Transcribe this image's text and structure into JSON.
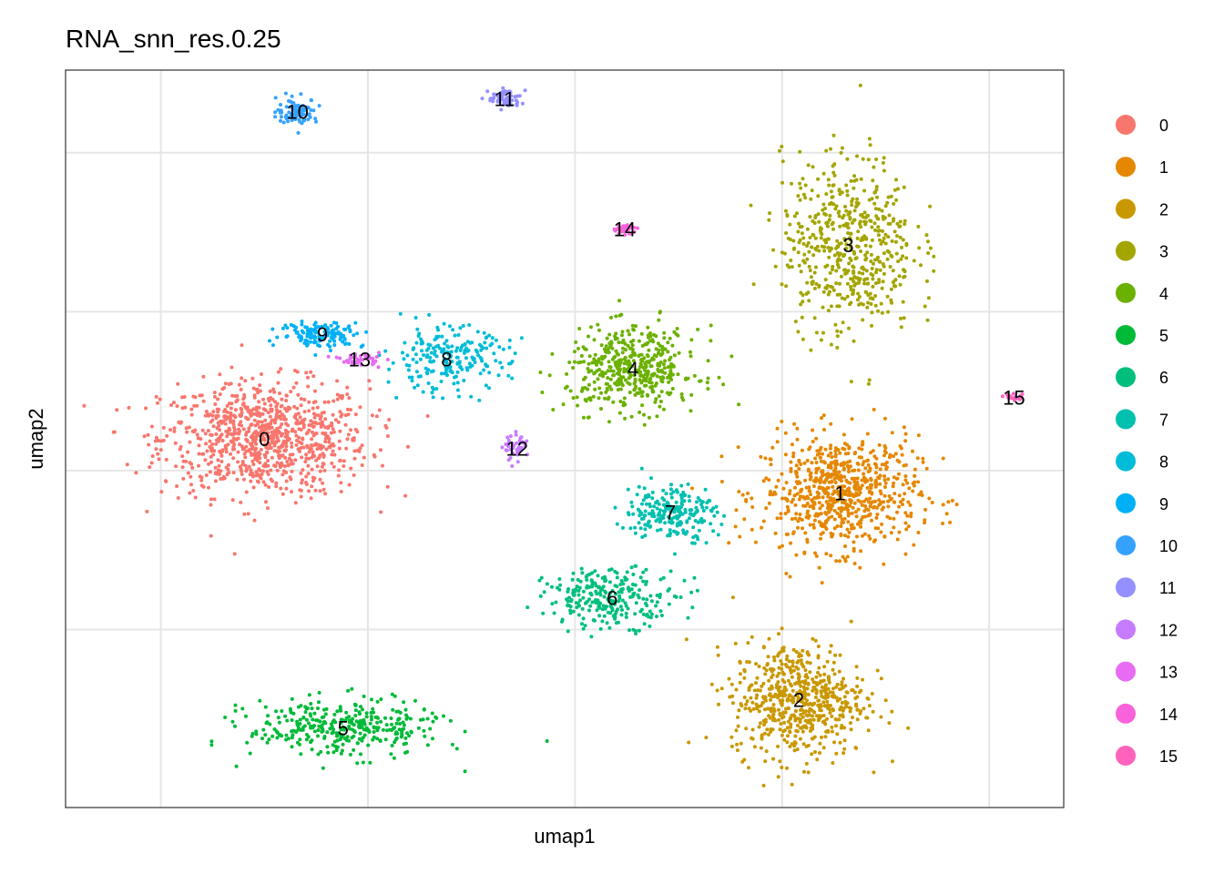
{
  "chart_data": {
    "type": "scatter",
    "title": "RNA_snn_res.0.25",
    "xlabel": "umap1",
    "ylabel": "umap2",
    "x_ticks_shown": false,
    "y_ticks_shown": false,
    "grid": true,
    "legend_position": "right",
    "xlim": [
      -4.3,
      19.8
    ],
    "ylim": [
      -10.6,
      12.6
    ],
    "clusters": [
      {
        "name": "0",
        "color": "#F8766D",
        "label_pos": [
          0.5,
          1.0
        ],
        "spread": [
          2.5,
          1.8
        ],
        "points": 900
      },
      {
        "name": "1",
        "color": "#E58700",
        "label_pos": [
          14.4,
          -0.7
        ],
        "spread": [
          1.9,
          1.8
        ],
        "points": 700
      },
      {
        "name": "2",
        "color": "#C99800",
        "label_pos": [
          13.4,
          -7.2
        ],
        "spread": [
          1.6,
          1.8
        ],
        "points": 600
      },
      {
        "name": "3",
        "color": "#A3A500",
        "label_pos": [
          14.6,
          7.1
        ],
        "spread": [
          1.6,
          2.8
        ],
        "points": 550
      },
      {
        "name": "4",
        "color": "#6BB100",
        "label_pos": [
          9.4,
          3.2
        ],
        "spread": [
          1.6,
          1.3
        ],
        "points": 450
      },
      {
        "name": "5",
        "color": "#00BA38",
        "label_pos": [
          2.4,
          -8.1
        ],
        "spread": [
          2.3,
          0.9
        ],
        "points": 350
      },
      {
        "name": "6",
        "color": "#00BF7D",
        "label_pos": [
          8.9,
          -4.0
        ],
        "spread": [
          1.6,
          0.9
        ],
        "points": 260
      },
      {
        "name": "7",
        "color": "#00C0AF",
        "label_pos": [
          10.3,
          -1.3
        ],
        "spread": [
          1.1,
          0.9
        ],
        "points": 220
      },
      {
        "name": "8",
        "color": "#00BCD8",
        "label_pos": [
          4.9,
          3.5
        ],
        "spread": [
          1.5,
          1.0
        ],
        "points": 220
      },
      {
        "name": "9",
        "color": "#00B0F6",
        "label_pos": [
          1.9,
          4.3
        ],
        "spread": [
          1.0,
          0.4
        ],
        "points": 140
      },
      {
        "name": "10",
        "color": "#35A2FF",
        "label_pos": [
          1.3,
          11.3
        ],
        "spread": [
          0.5,
          0.4
        ],
        "points": 90
      },
      {
        "name": "11",
        "color": "#9590FF",
        "label_pos": [
          6.3,
          11.7
        ],
        "spread": [
          0.4,
          0.3
        ],
        "points": 70
      },
      {
        "name": "12",
        "color": "#C77CFF",
        "label_pos": [
          6.6,
          0.7
        ],
        "spread": [
          0.3,
          0.4
        ],
        "points": 45
      },
      {
        "name": "13",
        "color": "#E76BF3",
        "label_pos": [
          2.8,
          3.5
        ],
        "spread": [
          0.5,
          0.2
        ],
        "points": 45
      },
      {
        "name": "14",
        "color": "#FA62DB",
        "label_pos": [
          9.2,
          7.6
        ],
        "spread": [
          0.3,
          0.15
        ],
        "points": 35
      },
      {
        "name": "15",
        "color": "#FF62BC",
        "label_pos": [
          18.6,
          2.3
        ],
        "spread": [
          0.3,
          0.1
        ],
        "points": 20
      }
    ]
  }
}
